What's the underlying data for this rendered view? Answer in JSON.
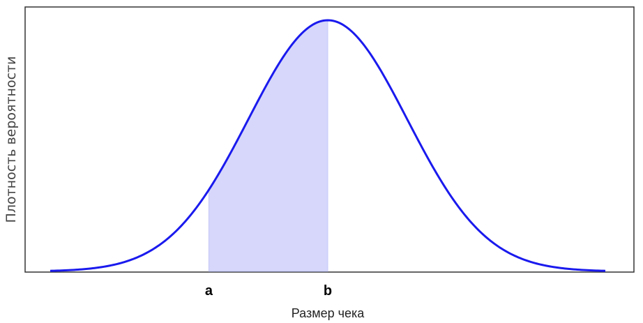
{
  "chart_data": {
    "type": "area",
    "distribution": "normal",
    "mean": 0,
    "sd": 1,
    "xlim": [
      -3.5,
      3.5
    ],
    "ylim": [
      0,
      0.42
    ],
    "grid": false,
    "shaded_interval": [
      -1.5,
      0
    ],
    "x_ticks": [
      {
        "label": "a",
        "value": -1.5
      },
      {
        "label": "b",
        "value": 0
      }
    ],
    "xlabel": "Размер чека",
    "ylabel": "Плотность вероятности",
    "title": "",
    "colors": {
      "curve": "#1a1aee",
      "fill": "#d6d7fb",
      "axes": "#333333"
    }
  }
}
